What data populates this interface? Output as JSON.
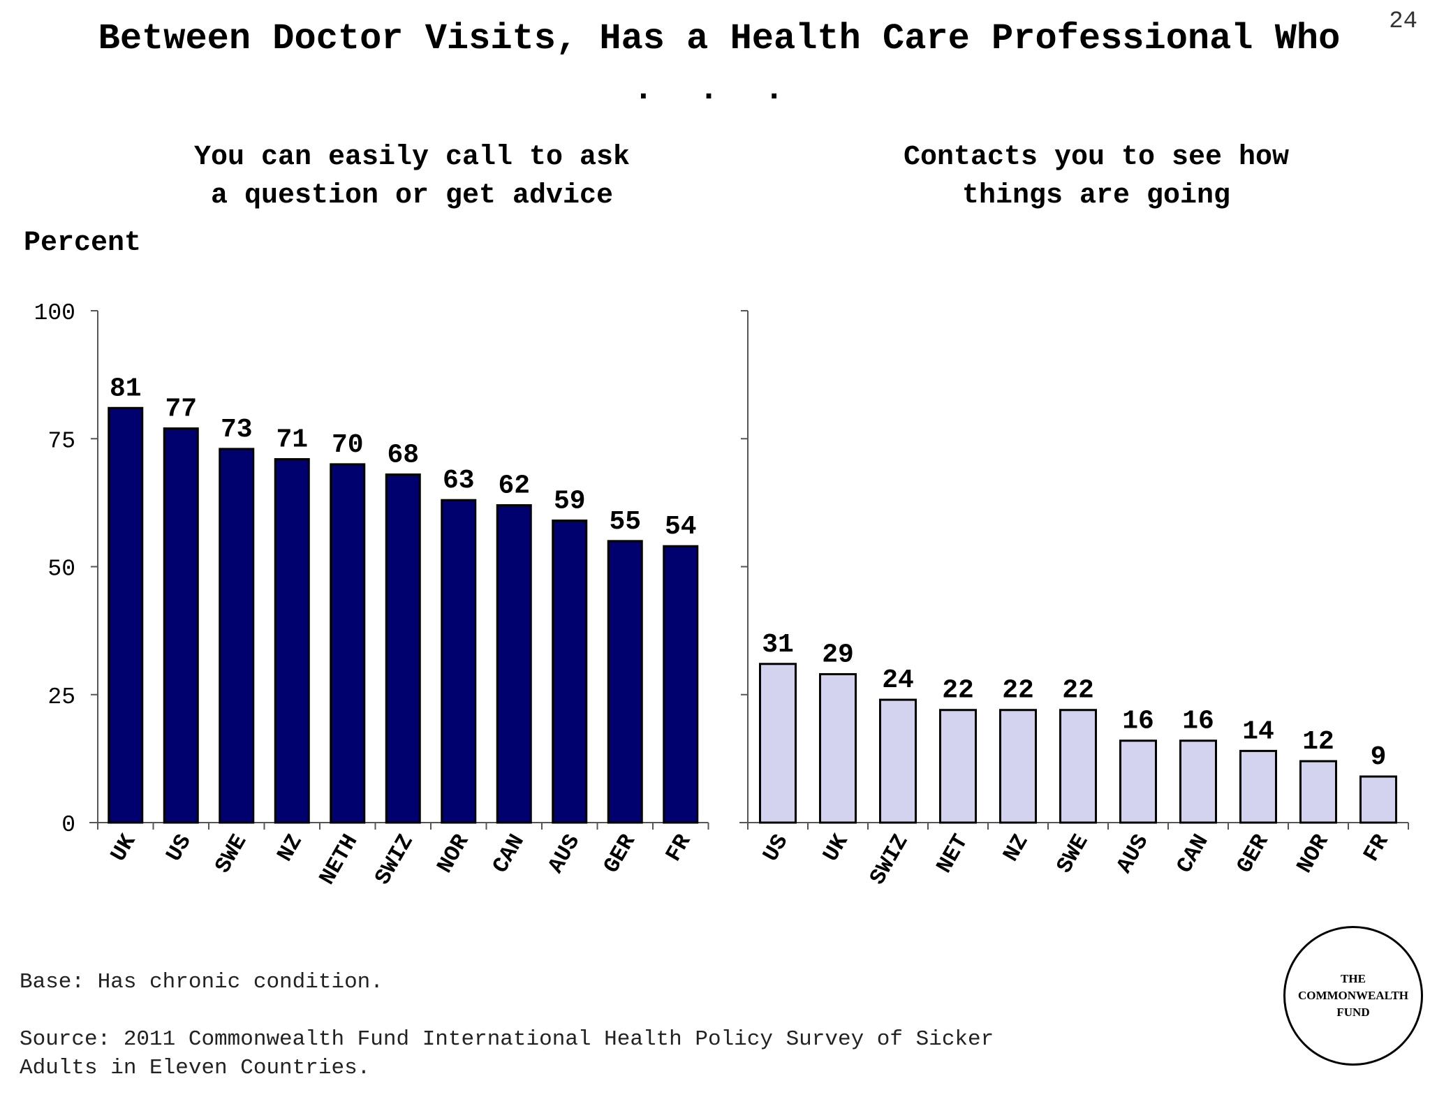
{
  "page_number": "24",
  "title": "Between Doctor Visits, Has a Health Care Professional Who",
  "title_continuation": ". . .",
  "y_axis_label": "Percent",
  "footer": {
    "base": "Base: Has chronic condition.",
    "source": "Source: 2011 Commonwealth Fund International Health Policy Survey of Sicker\nAdults in Eleven Countries."
  },
  "logo_text": "THE\nCOMMONWEALTH\nFUND",
  "chart_data": [
    {
      "type": "bar",
      "title": "You can easily call to ask a question or get advice",
      "ylabel": "Percent",
      "ylim": [
        0,
        100
      ],
      "yticks": [
        0,
        25,
        50,
        75,
        100
      ],
      "categories": [
        "UK",
        "US",
        "SWE",
        "NZ",
        "NETH",
        "SWIZ",
        "NOR",
        "CAN",
        "AUS",
        "GER",
        "FR"
      ],
      "values": [
        81,
        77,
        73,
        71,
        70,
        68,
        63,
        62,
        59,
        55,
        54
      ],
      "color": "#00006e"
    },
    {
      "type": "bar",
      "title": "Contacts you to see how things are going",
      "ylim": [
        0,
        100
      ],
      "categories": [
        "US",
        "UK",
        "SWIZ",
        "NET",
        "NZ",
        "SWE",
        "AUS",
        "CAN",
        "GER",
        "NOR",
        "FR"
      ],
      "values": [
        31,
        29,
        24,
        22,
        22,
        22,
        16,
        16,
        14,
        12,
        9
      ],
      "color": "#d3d3f0"
    }
  ]
}
